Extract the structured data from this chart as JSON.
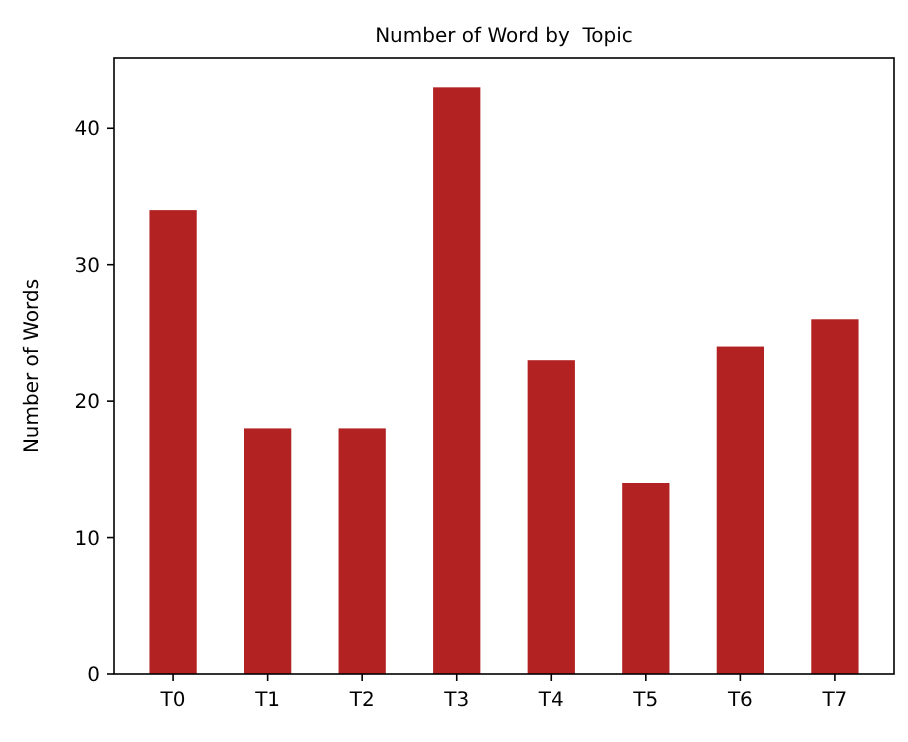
{
  "chart_data": {
    "type": "bar",
    "title": "Number of Word by  Topic",
    "ylabel": "Number of Words",
    "categories": [
      "T0",
      "T1",
      "T2",
      "T3",
      "T4",
      "T5",
      "T6",
      "T7"
    ],
    "values": [
      34,
      18,
      18,
      43,
      23,
      14,
      24,
      26
    ],
    "color": "#b22222",
    "ylim": [
      0,
      45.15
    ],
    "yticks": [
      0,
      10,
      20,
      30,
      40
    ],
    "grid": false
  }
}
